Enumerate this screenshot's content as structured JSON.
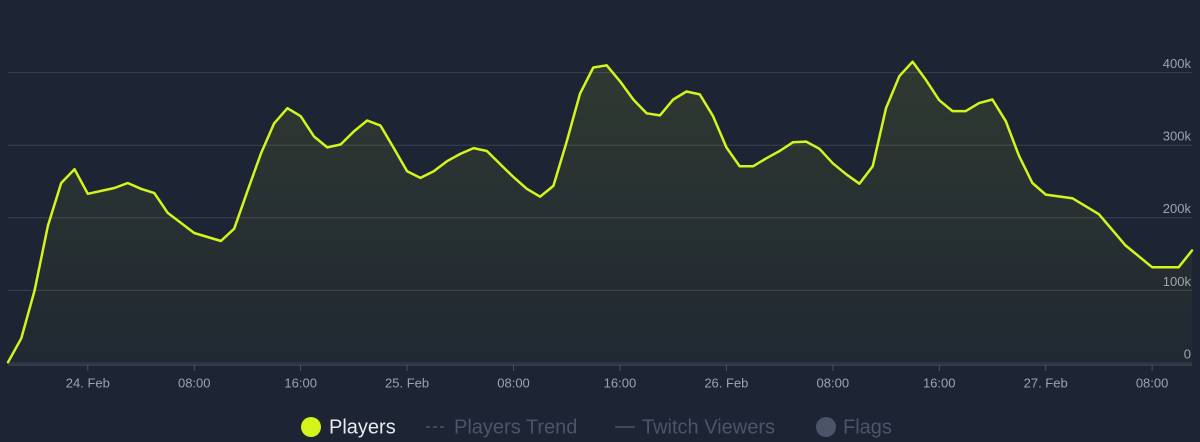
{
  "chart_data": {
    "type": "area",
    "x": [
      "23. Feb 18:00",
      "23. Feb 19:00",
      "23. Feb 20:00",
      "23. Feb 21:00",
      "23. Feb 22:00",
      "23. Feb 23:00",
      "24. Feb 00:00",
      "24. Feb 02:00",
      "24. Feb 03:00",
      "24. Feb 04:00",
      "24. Feb 05:00",
      "24. Feb 06:00",
      "24. Feb 08:00",
      "24. Feb 10:00",
      "24. Feb 11:00",
      "24. Feb 12:00",
      "24. Feb 13:00",
      "24. Feb 14:00",
      "24. Feb 15:00",
      "24. Feb 16:00",
      "24. Feb 17:00",
      "24. Feb 18:00",
      "24. Feb 19:00",
      "24. Feb 20:00",
      "24. Feb 21:00",
      "24. Feb 22:00",
      "24. Feb 23:00",
      "25. Feb 00:00",
      "25. Feb 01:00",
      "25. Feb 02:00",
      "25. Feb 03:00",
      "25. Feb 04:00",
      "25. Feb 05:00",
      "25. Feb 06:00",
      "25. Feb 07:00",
      "25. Feb 08:00",
      "25. Feb 09:00",
      "25. Feb 10:00",
      "25. Feb 11:00",
      "25. Feb 12:00",
      "25. Feb 13:00",
      "25. Feb 14:00",
      "25. Feb 15:00",
      "25. Feb 16:00",
      "25. Feb 17:00",
      "25. Feb 18:00",
      "25. Feb 19:00",
      "25. Feb 20:00",
      "25. Feb 21:00",
      "25. Feb 22:00",
      "25. Feb 23:00",
      "26. Feb 00:00",
      "26. Feb 01:00",
      "26. Feb 02:00",
      "26. Feb 03:00",
      "26. Feb 04:00",
      "26. Feb 05:00",
      "26. Feb 06:00",
      "26. Feb 07:00",
      "26. Feb 08:00",
      "26. Feb 09:00",
      "26. Feb 10:00",
      "26. Feb 11:00",
      "26. Feb 12:00",
      "26. Feb 13:00",
      "26. Feb 14:00",
      "26. Feb 15:00",
      "26. Feb 16:00",
      "26. Feb 17:00",
      "26. Feb 18:00",
      "26. Feb 19:00",
      "26. Feb 20:00",
      "26. Feb 21:00",
      "26. Feb 22:00",
      "26. Feb 23:00",
      "27. Feb 00:00",
      "27. Feb 02:00",
      "27. Feb 04:00",
      "27. Feb 06:00",
      "27. Feb 08:00",
      "27. Feb 10:00",
      "27. Feb 11:00"
    ],
    "series": [
      {
        "name": "Players",
        "color": "#d4f51c",
        "values": [
          1000,
          34000,
          100000,
          189000,
          248000,
          267000,
          233000,
          241000,
          248000,
          240000,
          234000,
          207000,
          179000,
          168000,
          185000,
          237000,
          288000,
          330000,
          351000,
          340000,
          312000,
          297000,
          301000,
          319000,
          334000,
          327000,
          296000,
          264000,
          255000,
          264000,
          278000,
          288000,
          296000,
          292000,
          274000,
          256000,
          240000,
          229000,
          244000,
          305000,
          371000,
          407000,
          410000,
          388000,
          363000,
          344000,
          341000,
          363000,
          374000,
          370000,
          340000,
          297000,
          271000,
          271000,
          282000,
          292000,
          304000,
          305000,
          295000,
          275000,
          260000,
          247000,
          271000,
          351000,
          395000,
          415000,
          390000,
          362000,
          347000,
          347000,
          358000,
          363000,
          333000,
          285000,
          248000,
          232000,
          227000,
          205000,
          162000,
          132000,
          132000,
          155000
        ]
      }
    ],
    "inactive_series": [
      "Players Trend",
      "Twitch Viewers",
      "Flags"
    ],
    "xlim": [
      "23. Feb 18:00",
      "27. Feb 11:00"
    ],
    "xticks": [
      {
        "value": "24. Feb 00:00",
        "label": "24. Feb"
      },
      {
        "value": "24. Feb 08:00",
        "label": "08:00"
      },
      {
        "value": "24. Feb 16:00",
        "label": "16:00"
      },
      {
        "value": "25. Feb 00:00",
        "label": "25. Feb"
      },
      {
        "value": "25. Feb 08:00",
        "label": "08:00"
      },
      {
        "value": "25. Feb 16:00",
        "label": "16:00"
      },
      {
        "value": "26. Feb 00:00",
        "label": "26. Feb"
      },
      {
        "value": "26. Feb 08:00",
        "label": "08:00"
      },
      {
        "value": "26. Feb 16:00",
        "label": "16:00"
      },
      {
        "value": "27. Feb 00:00",
        "label": "27. Feb"
      },
      {
        "value": "27. Feb 08:00",
        "label": "08:00"
      }
    ],
    "ylim": [
      0,
      500000
    ],
    "yticks": [
      0,
      {
        "value": 100000,
        "label": "100k"
      },
      {
        "value": 200000,
        "label": "200k"
      },
      {
        "value": 300000,
        "label": "300k"
      },
      {
        "value": 400000,
        "label": "400k"
      }
    ],
    "grid": true
  }
}
